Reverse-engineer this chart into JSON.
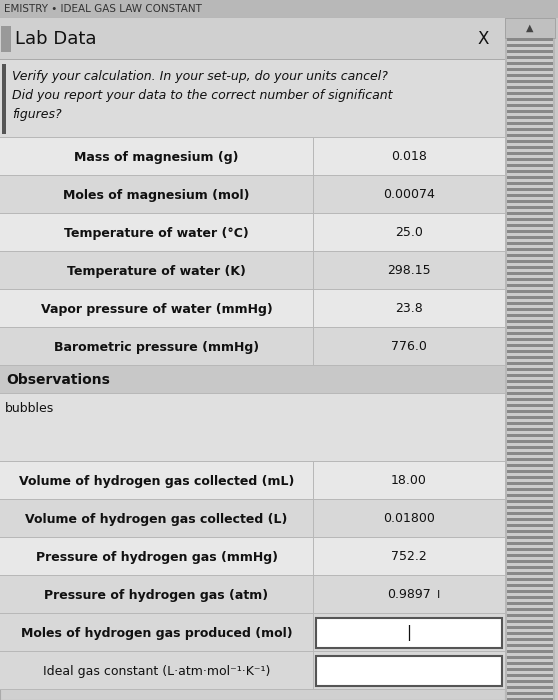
{
  "header_text": "EMISTRY • IDEAL GAS LAW CONSTANT",
  "title": "Lab Data",
  "close_btn": "X",
  "verify_text": "Verify your calculation. In your set-up, do your units cancel?\nDid you report your data to the correct number of significant\nfigures?",
  "rows": [
    {
      "label": "Mass of magnesium (g)",
      "value": "0.018",
      "bold_label": true,
      "input": false,
      "cursor": false
    },
    {
      "label": "Moles of magnesium (mol)",
      "value": "0.00074",
      "bold_label": true,
      "input": false,
      "cursor": false
    },
    {
      "label": "Temperature of water (°C)",
      "value": "25.0",
      "bold_label": true,
      "input": false,
      "cursor": false
    },
    {
      "label": "Temperature of water (K)",
      "value": "298.15",
      "bold_label": true,
      "input": false,
      "cursor": false
    },
    {
      "label": "Vapor pressure of water (mmHg)",
      "value": "23.8",
      "bold_label": true,
      "input": false,
      "cursor": false
    },
    {
      "label": "Barometric pressure (mmHg)",
      "value": "776.0",
      "bold_label": true,
      "input": false,
      "cursor": false
    }
  ],
  "obs_label": "Observations",
  "obs_value": "bubbles",
  "rows2": [
    {
      "label": "Volume of hydrogen gas collected (mL)",
      "value": "18.00",
      "bold_label": true,
      "input": false,
      "cursor": false
    },
    {
      "label": "Volume of hydrogen gas collected (L)",
      "value": "0.01800",
      "bold_label": true,
      "input": false,
      "cursor": false
    },
    {
      "label": "Pressure of hydrogen gas (mmHg)",
      "value": "752.2",
      "bold_label": true,
      "input": false,
      "cursor": false
    },
    {
      "label": "Pressure of hydrogen gas (atm)",
      "value": "0.9897",
      "bold_label": true,
      "input": false,
      "cursor": true
    },
    {
      "label": "Moles of hydrogen gas produced (mol)",
      "value": "",
      "bold_label": true,
      "input": true,
      "cursor": true
    },
    {
      "label": "Ideal gas constant (L·atm·mol⁻¹·K⁻¹)",
      "value": "",
      "bold_label": false,
      "input": true,
      "cursor": false
    }
  ],
  "bg_color": "#c8c8c8",
  "header_bg": "#b8b8b8",
  "dialog_bg": "#d0d0d0",
  "title_bar_bg": "#d0d0d0",
  "verify_bg": "#dcdcdc",
  "row_bg_light": "#e8e8e8",
  "row_bg_dark": "#d8d8d8",
  "obs_header_bg": "#c8c8c8",
  "obs_text_bg": "#e0e0e0",
  "divider_color": "#b8b8b8",
  "input_bg": "#ffffff",
  "input_border": "#555555",
  "left_bar_color": "#555555",
  "scrollbar_dark": "#888888",
  "scrollbar_light": "#cccccc",
  "scrollbar_bg": "#b8b8b8",
  "text_dark": "#111111",
  "text_medium": "#333333"
}
